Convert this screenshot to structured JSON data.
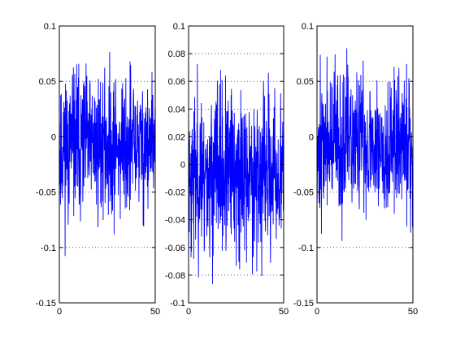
{
  "chart_data": [
    {
      "type": "line",
      "title": "",
      "xlabel": "",
      "ylabel": "",
      "xlim": [
        0,
        50
      ],
      "ylim": [
        -0.15,
        0.1
      ],
      "xticks": [
        0,
        50
      ],
      "yticks": [
        -0.15,
        -0.1,
        -0.05,
        0,
        0.05,
        0.1
      ],
      "ytick_labels": [
        "-0.15",
        "-0.1",
        "-0.05",
        "0",
        "0.05",
        "0.1"
      ],
      "xtick_labels": [
        "0",
        "50"
      ],
      "grid": "dotted",
      "series": [
        {
          "color": "#0000ff",
          "n": 500,
          "range": [
            -0.11,
            0.093
          ],
          "seed": 11
        }
      ]
    },
    {
      "type": "line",
      "title": "",
      "xlabel": "",
      "ylabel": "",
      "xlim": [
        0,
        50
      ],
      "ylim": [
        -0.1,
        0.1
      ],
      "xticks": [
        0,
        50
      ],
      "yticks": [
        -0.1,
        -0.08,
        -0.06,
        -0.04,
        -0.02,
        0,
        0.02,
        0.04,
        0.06,
        0.08,
        0.1
      ],
      "ytick_labels": [
        "-0.1",
        "-0.08",
        "-0.06",
        "-0.04",
        "-0.02",
        "0",
        "0.02",
        "0.04",
        "0.06",
        "0.08",
        "0.1"
      ],
      "xtick_labels": [
        "0",
        "50"
      ],
      "grid": "dotted",
      "series": [
        {
          "color": "#0000ff",
          "n": 500,
          "range": [
            -0.1,
            0.085
          ],
          "seed": 23
        }
      ]
    },
    {
      "type": "line",
      "title": "",
      "xlabel": "",
      "ylabel": "",
      "xlim": [
        0,
        50
      ],
      "ylim": [
        -0.15,
        0.1
      ],
      "xticks": [
        0,
        50
      ],
      "yticks": [
        -0.15,
        -0.1,
        -0.05,
        0,
        0.05,
        0.1
      ],
      "ytick_labels": [
        "-0.15",
        "-0.1",
        "-0.05",
        "0",
        "0.05",
        "0.1"
      ],
      "xtick_labels": [
        "0",
        "50"
      ],
      "grid": "dotted",
      "series": [
        {
          "color": "#0000ff",
          "n": 500,
          "range": [
            -0.107,
            0.093
          ],
          "seed": 37
        }
      ]
    }
  ]
}
